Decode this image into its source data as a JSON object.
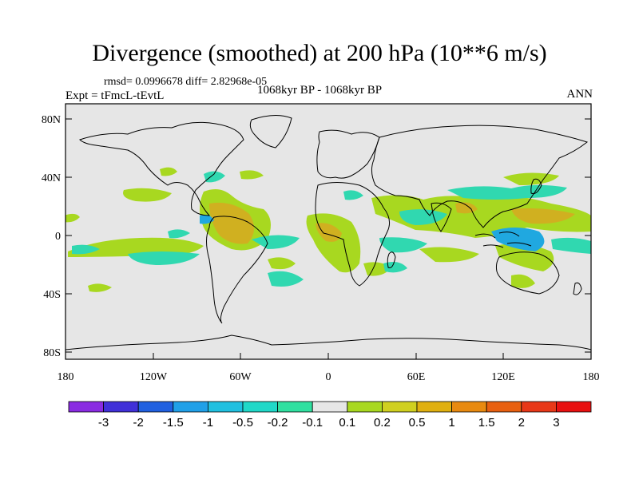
{
  "title": "Divergence (smoothed) at 200 hPa (10**6 m/s)",
  "stats_line": "rmsd= 0.0996678 diff= 2.82968e-05",
  "experiment": "Expt = tFmcL-tEvtL",
  "period": "1068kyr BP - 1068kyr BP",
  "season": "ANN",
  "map": {
    "lat_ticks": [
      "80N",
      "40N",
      "0",
      "40S",
      "80S"
    ],
    "lon_ticks": [
      "180",
      "120W",
      "60W",
      "0",
      "60E",
      "120E",
      "180"
    ],
    "background_color": "#e6e6e6"
  },
  "colorbar": {
    "labels": [
      "-3",
      "-2",
      "-1.5",
      "-1",
      "-0.5",
      "-0.2",
      "-0.1",
      "0.1",
      "0.2",
      "0.5",
      "1",
      "1.5",
      "2",
      "3"
    ],
    "colors": [
      "#8a2be2",
      "#4030d8",
      "#2060e0",
      "#20a0e8",
      "#20c0e0",
      "#20d8c8",
      "#30e0a0",
      "#e6e6e6",
      "#a8d820",
      "#d0d020",
      "#e0b010",
      "#e88a10",
      "#e86010",
      "#e83818",
      "#e81010"
    ]
  }
}
